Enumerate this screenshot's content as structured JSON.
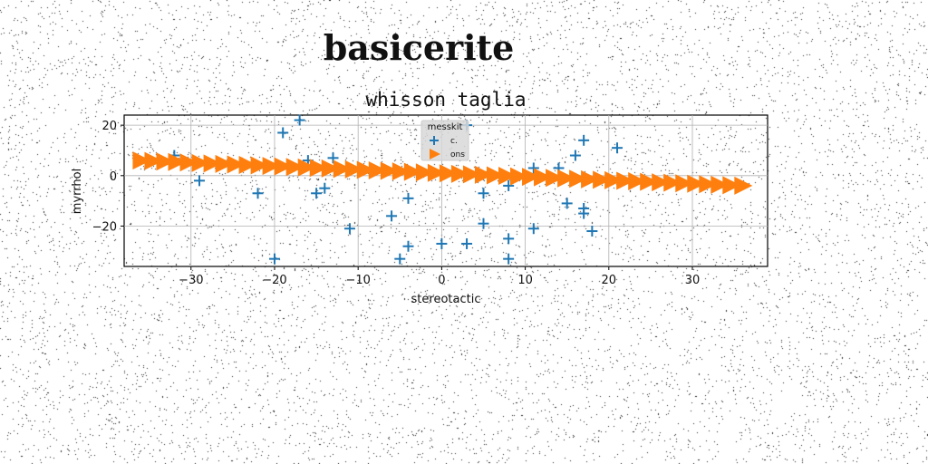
{
  "figure": {
    "suptitle": "basicerite",
    "title": "whisson taglia"
  },
  "chart_data": {
    "type": "scatter",
    "title": "whisson taglia",
    "xlabel": "stereotactic",
    "ylabel": "myrrhol",
    "xlim": [
      -38,
      39
    ],
    "ylim": [
      -36,
      24
    ],
    "xticks": [
      -30,
      -20,
      -10,
      0,
      10,
      20,
      30
    ],
    "yticks": [
      -20,
      0,
      20
    ],
    "grid": true,
    "legend": {
      "title": "messkit",
      "placement": "top-center"
    },
    "series": [
      {
        "name": "c.",
        "marker": "plus",
        "color": "#1f77b4",
        "points": [
          [
            -32,
            8
          ],
          [
            -29,
            -2
          ],
          [
            -22,
            -7
          ],
          [
            -20,
            -33
          ],
          [
            -19,
            17
          ],
          [
            -17,
            22
          ],
          [
            -16,
            6
          ],
          [
            -15,
            -7
          ],
          [
            -14,
            -5
          ],
          [
            -13,
            7
          ],
          [
            -11,
            -21
          ],
          [
            -6,
            -16
          ],
          [
            -5,
            -33
          ],
          [
            -4,
            -9
          ],
          [
            -4,
            -28
          ],
          [
            0,
            -27
          ],
          [
            3,
            -27
          ],
          [
            3,
            20
          ],
          [
            5,
            -7
          ],
          [
            5,
            -19
          ],
          [
            8,
            -4
          ],
          [
            8,
            -25
          ],
          [
            8,
            -33
          ],
          [
            11,
            3
          ],
          [
            11,
            -21
          ],
          [
            14,
            3
          ],
          [
            15,
            -11
          ],
          [
            16,
            8
          ],
          [
            17,
            14
          ],
          [
            17,
            -13
          ],
          [
            17,
            -15
          ],
          [
            18,
            -22
          ],
          [
            21,
            11
          ]
        ]
      },
      {
        "name": "ons",
        "marker": "triangle-right",
        "color": "#ff7f0e",
        "line": {
          "x_start": -36,
          "x_end": 36,
          "y_start": 6,
          "y_end": -4,
          "count": 52
        }
      }
    ]
  }
}
